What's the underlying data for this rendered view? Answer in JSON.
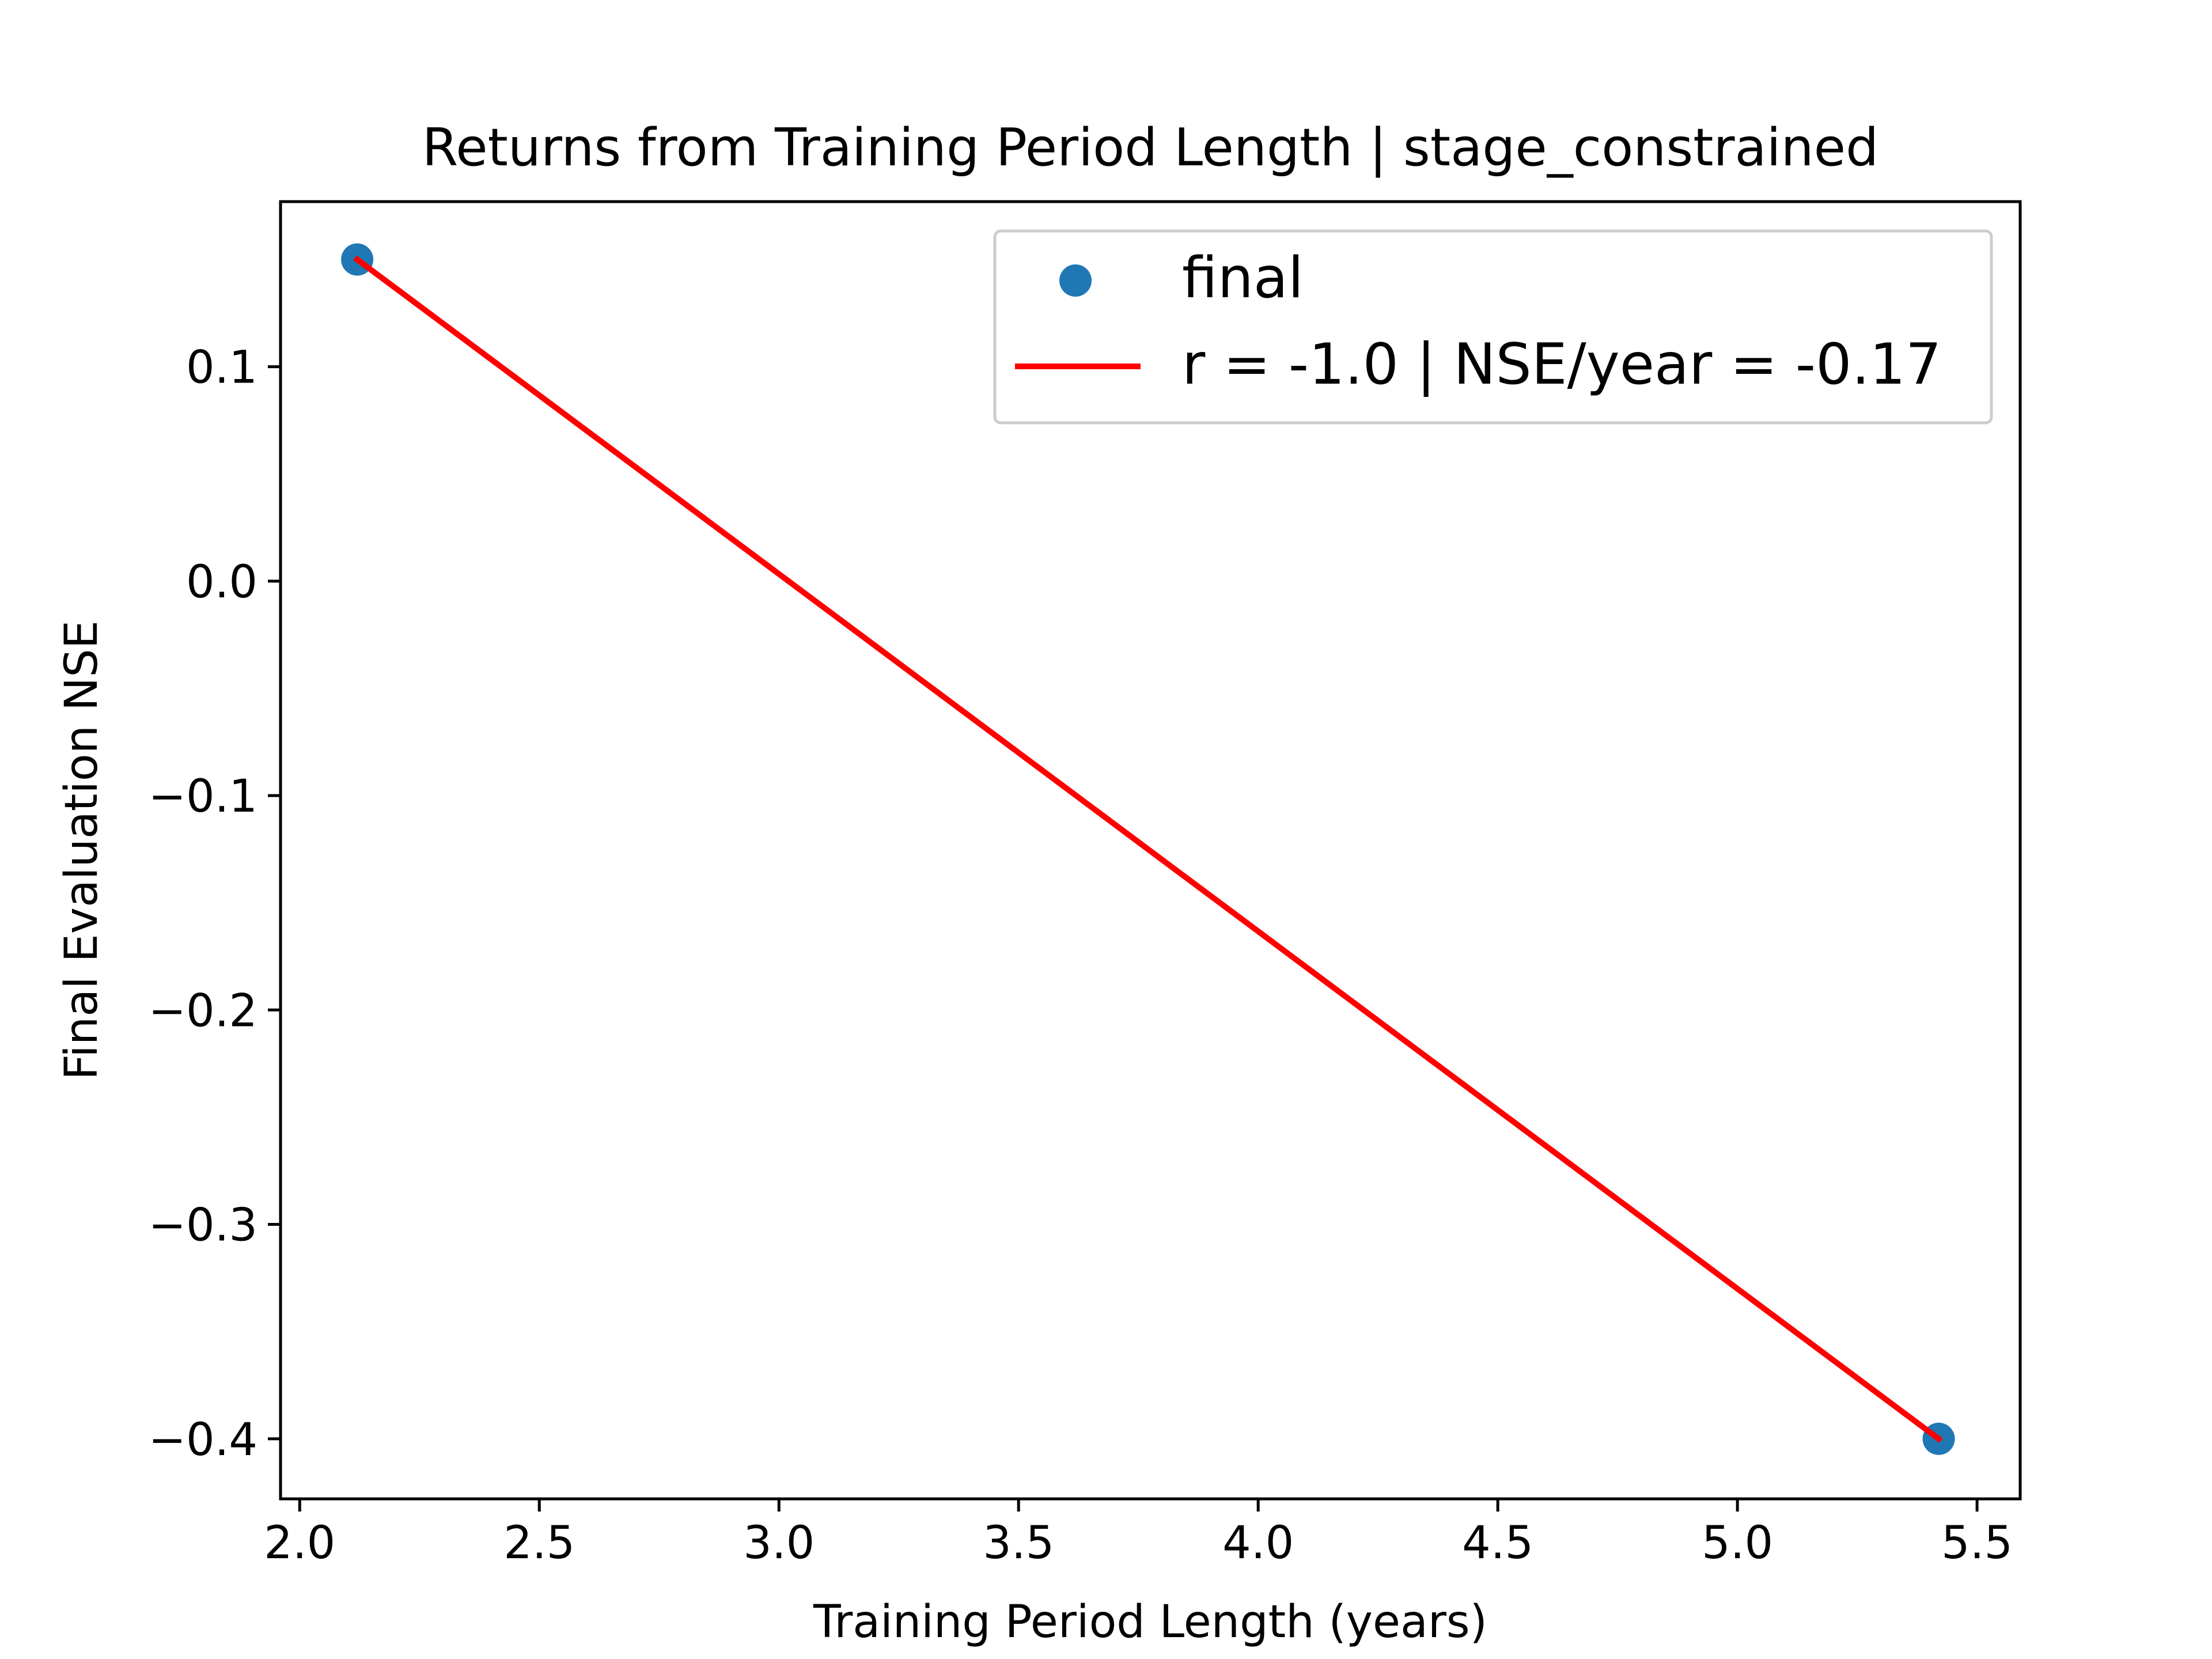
{
  "chart_data": {
    "type": "scatter",
    "title": "Returns from Training Period Length | stage_constrained",
    "xlabel": "Training Period Length (years)",
    "ylabel": "Final Evaluation NSE",
    "xlim": [
      1.96,
      5.59
    ],
    "ylim": [
      -0.428,
      0.177
    ],
    "xticks": [
      2.0,
      2.5,
      3.0,
      3.5,
      4.0,
      4.5,
      5.0,
      5.5
    ],
    "xtick_labels": [
      "2.0",
      "2.5",
      "3.0",
      "3.5",
      "4.0",
      "4.5",
      "5.0",
      "5.5"
    ],
    "yticks": [
      0.1,
      0.0,
      -0.1,
      -0.2,
      -0.3,
      -0.4
    ],
    "ytick_labels": [
      "0.1",
      "0.0",
      "−0.1",
      "−0.2",
      "−0.3",
      "−0.4"
    ],
    "grid": false,
    "legend_position": "top-right",
    "series": [
      {
        "name": "final",
        "kind": "scatter",
        "color": "#1f77b4",
        "points": [
          {
            "x": 2.12,
            "y": 0.15
          },
          {
            "x": 5.42,
            "y": -0.4
          }
        ]
      },
      {
        "name": "r = -1.0 | NSE/year = -0.17",
        "kind": "line",
        "color": "#ff0000",
        "points": [
          {
            "x": 2.12,
            "y": 0.15
          },
          {
            "x": 5.42,
            "y": -0.4
          }
        ]
      }
    ]
  }
}
